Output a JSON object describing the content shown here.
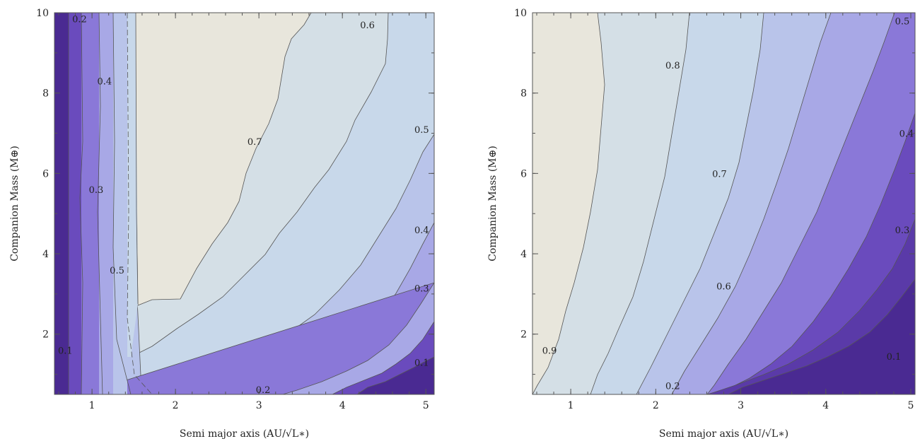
{
  "chart_data": [
    {
      "type": "contour",
      "xlabel": "Semi major axis (AU/√L∗)",
      "ylabel": "Companion Mass (M⊕)",
      "xlim": [
        0.55,
        5.1
      ],
      "ylim": [
        0.5,
        10
      ],
      "xticks": [
        "1",
        "2",
        "3",
        "4",
        "5"
      ],
      "yticks": [
        "2",
        "4",
        "6",
        "8",
        "10"
      ],
      "palette": [
        "#4a2a92",
        "#6a4bbd",
        "#8a78d8",
        "#a8a8e6",
        "#b9c4ea",
        "#c8d8ea",
        "#d4dfe6",
        "#e8e6dc"
      ],
      "contour_levels": [
        "0.1",
        "0.2",
        "0.3",
        "0.4",
        "0.5",
        "0.6",
        "0.7"
      ],
      "labels": [
        {
          "text": "0.2",
          "x": 0.85,
          "y": 9.85
        },
        {
          "text": "0.6",
          "x": 4.3,
          "y": 9.7
        },
        {
          "text": "0.4",
          "x": 1.15,
          "y": 8.3
        },
        {
          "text": "0.5",
          "x": 4.95,
          "y": 7.1
        },
        {
          "text": "0.7",
          "x": 2.95,
          "y": 6.8
        },
        {
          "text": "0.3",
          "x": 1.05,
          "y": 5.6
        },
        {
          "text": "0.4",
          "x": 4.95,
          "y": 4.6
        },
        {
          "text": "0.5",
          "x": 1.3,
          "y": 3.6
        },
        {
          "text": "0.3",
          "x": 4.95,
          "y": 3.15
        },
        {
          "text": "0.1",
          "x": 0.68,
          "y": 1.6
        },
        {
          "text": "0.1",
          "x": 4.95,
          "y": 1.3
        },
        {
          "text": "0.2",
          "x": 3.05,
          "y": 0.62
        }
      ]
    },
    {
      "type": "contour",
      "xlabel": "Semi major axis (AU/√L∗)",
      "ylabel": "Companion Mass (M⊕)",
      "xlim": [
        0.55,
        5.05
      ],
      "ylim": [
        0.5,
        10
      ],
      "xticks": [
        "1",
        "2",
        "3",
        "4",
        "5"
      ],
      "yticks": [
        "2",
        "4",
        "6",
        "8",
        "10"
      ],
      "palette": [
        "#4a2a92",
        "#6a4bbd",
        "#8a78d8",
        "#a8a8e6",
        "#b9c4ea",
        "#c8d8ea",
        "#d4dfe6",
        "#e8e6dc"
      ],
      "contour_levels": [
        "0.1",
        "0.2",
        "0.3",
        "0.4",
        "0.5",
        "0.6",
        "0.7",
        "0.8",
        "0.9"
      ],
      "labels": [
        {
          "text": "0.5",
          "x": 4.9,
          "y": 9.8
        },
        {
          "text": "0.8",
          "x": 2.2,
          "y": 8.7
        },
        {
          "text": "0.4",
          "x": 4.95,
          "y": 7.0
        },
        {
          "text": "0.7",
          "x": 2.75,
          "y": 6.0
        },
        {
          "text": "0.3",
          "x": 4.9,
          "y": 4.6
        },
        {
          "text": "0.6",
          "x": 2.8,
          "y": 3.2
        },
        {
          "text": "0.9",
          "x": 0.75,
          "y": 1.6
        },
        {
          "text": "0.1",
          "x": 4.8,
          "y": 1.45
        },
        {
          "text": "0.2",
          "x": 2.2,
          "y": 0.72
        }
      ]
    }
  ]
}
